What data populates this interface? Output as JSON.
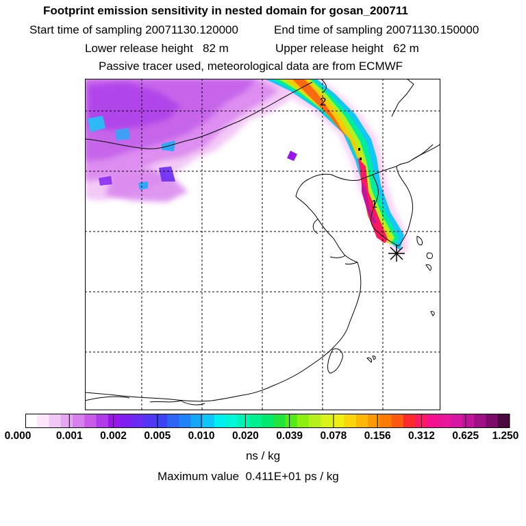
{
  "header": {
    "title": "Footprint emission sensitivity in nested domain for gosan_200711",
    "start_time": "Start time of sampling 20071130.120000",
    "end_time": "End time of sampling 20071130.150000",
    "lower_height": "Lower release height   82 m",
    "upper_height": "Upper release height   62 m",
    "tracer_note": "Passive tracer used, meteorological data are from ECMWF"
  },
  "map": {
    "markers": [
      {
        "label": "1"
      },
      {
        "label": "2"
      }
    ]
  },
  "colorbar": {
    "ticks": [
      "0.000",
      "0.001",
      "0.002",
      "0.005",
      "0.010",
      "0.020",
      "0.039",
      "0.078",
      "0.156",
      "0.312",
      "0.625",
      "1.250"
    ],
    "colors": [
      "#ffffff",
      "#fbe6fb",
      "#f2c8f6",
      "#e6a7f2",
      "#d87fee",
      "#c95be9",
      "#b13bea",
      "#9a17ea",
      "#7e1ef0",
      "#6a2cf2",
      "#5236f4",
      "#3d42f4",
      "#2e63f6",
      "#1f82f6",
      "#14a6f7",
      "#0fc4f6",
      "#00f0f0",
      "#00f7d8",
      "#00f5b5",
      "#00f08f",
      "#00e86e",
      "#22e43c",
      "#52ea18",
      "#8cef0f",
      "#b6f01b",
      "#d9f21a",
      "#f0ee12",
      "#fbd60a",
      "#fbb806",
      "#fb9804",
      "#fb7a04",
      "#fb5a10",
      "#fb2a2a",
      "#fa1a62",
      "#f5108e",
      "#e7169a",
      "#d816a4",
      "#c0149a",
      "#9e0f86",
      "#7b0a6b",
      "#4a0a40"
    ],
    "units": "ns / kg"
  },
  "footer": {
    "max_value": "Maximum value  0.411E+01 ps / kg"
  }
}
